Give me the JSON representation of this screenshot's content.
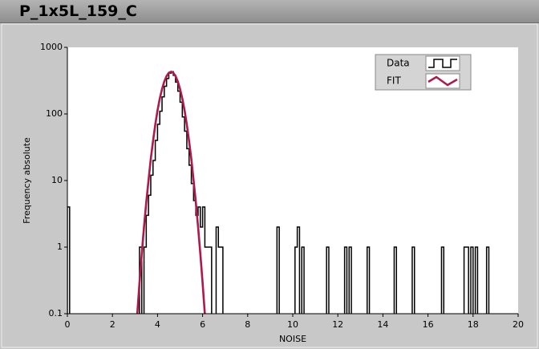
{
  "window_title": "P_1x5L_159_C",
  "chart_data": {
    "type": "line",
    "ylog": true,
    "xlabel": "NOISE",
    "ylabel": "Frequency absolute",
    "xlim": [
      0,
      20
    ],
    "xticks": [
      0,
      2,
      4,
      6,
      8,
      10,
      12,
      14,
      16,
      18,
      20
    ],
    "ylim": [
      0.1,
      1000
    ],
    "yticks": [
      0.1,
      1,
      10,
      100,
      1000
    ],
    "legend": "top-right",
    "series": [
      {
        "name": "Data",
        "color": "#000000",
        "style": "step",
        "x": [
          0.0,
          null,
          3.2,
          null,
          3.4,
          3.5,
          3.6,
          3.7,
          3.8,
          3.9,
          4.0,
          4.1,
          4.2,
          4.3,
          4.4,
          4.5,
          4.6,
          4.7,
          4.8,
          4.9,
          5.0,
          5.1,
          5.2,
          5.3,
          5.4,
          5.5,
          5.6,
          5.7,
          5.8,
          5.9,
          6.0,
          6.1,
          6.2,
          6.3,
          null,
          6.6,
          6.7,
          6.8,
          null,
          9.3,
          null,
          10.1,
          10.2,
          null,
          10.4,
          null,
          11.5,
          null,
          12.3,
          null,
          12.5,
          null,
          13.3,
          null,
          14.5,
          null,
          15.3,
          null,
          16.6,
          null,
          17.6,
          17.7,
          null,
          17.9,
          null,
          18.1,
          null,
          18.6
        ],
        "values": [
          4,
          null,
          1,
          null,
          1,
          3,
          6,
          12,
          20,
          40,
          70,
          110,
          180,
          260,
          340,
          410,
          430,
          380,
          300,
          220,
          150,
          90,
          55,
          30,
          17,
          9,
          5,
          3,
          4,
          2,
          4,
          1,
          1,
          1,
          null,
          2,
          1,
          1,
          null,
          2,
          null,
          1,
          2,
          null,
          1,
          null,
          1,
          null,
          1,
          null,
          1,
          null,
          1,
          null,
          1,
          null,
          1,
          null,
          1,
          null,
          1,
          1,
          null,
          1,
          null,
          1,
          null,
          1
        ]
      },
      {
        "name": "FIT",
        "color": "#b0174a",
        "style": "smooth",
        "x": [
          3.1,
          3.2,
          3.3,
          3.4,
          3.5,
          3.6,
          3.7,
          3.8,
          3.9,
          4.0,
          4.1,
          4.2,
          4.3,
          4.4,
          4.5,
          4.6,
          4.7,
          4.8,
          4.9,
          5.0,
          5.1,
          5.2,
          5.3,
          5.4,
          5.5,
          5.6,
          5.7,
          5.8,
          5.9,
          6.0,
          6.1
        ],
        "values": [
          0.098,
          0.29,
          0.79,
          2.0,
          4.7,
          10,
          21,
          39,
          69,
          113,
          170,
          236,
          307,
          370,
          414,
          430,
          414,
          370,
          307,
          236,
          170,
          113,
          69,
          39,
          21,
          10,
          4.7,
          2.0,
          0.79,
          0.29,
          0.098
        ]
      }
    ]
  }
}
